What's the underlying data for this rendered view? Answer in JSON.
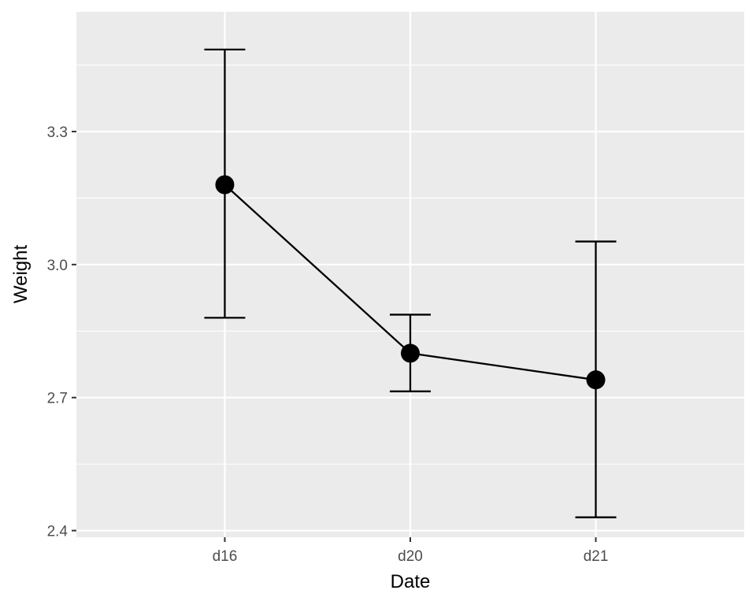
{
  "chart_data": {
    "type": "line",
    "title": "",
    "xlabel": "Date",
    "ylabel": "Weight",
    "categories": [
      "d16",
      "d20",
      "d21"
    ],
    "values": [
      3.18,
      2.8,
      2.74
    ],
    "error_lower": [
      2.88,
      2.714,
      2.43
    ],
    "error_upper": [
      3.485,
      2.887,
      3.052
    ],
    "ylim": [
      2.385,
      3.57
    ],
    "y_ticks": [
      2.4,
      2.7,
      3.0,
      3.3
    ],
    "y_tick_labels": [
      "2.4",
      "2.7",
      "3.0",
      "3.3"
    ],
    "grid": true,
    "legend": "none",
    "colors": {
      "panel_background": "#ebebeb",
      "grid_line": "#ffffff",
      "series": "#000000",
      "tick_label": "#4d4d4d",
      "tick_mark": "#333333"
    }
  }
}
